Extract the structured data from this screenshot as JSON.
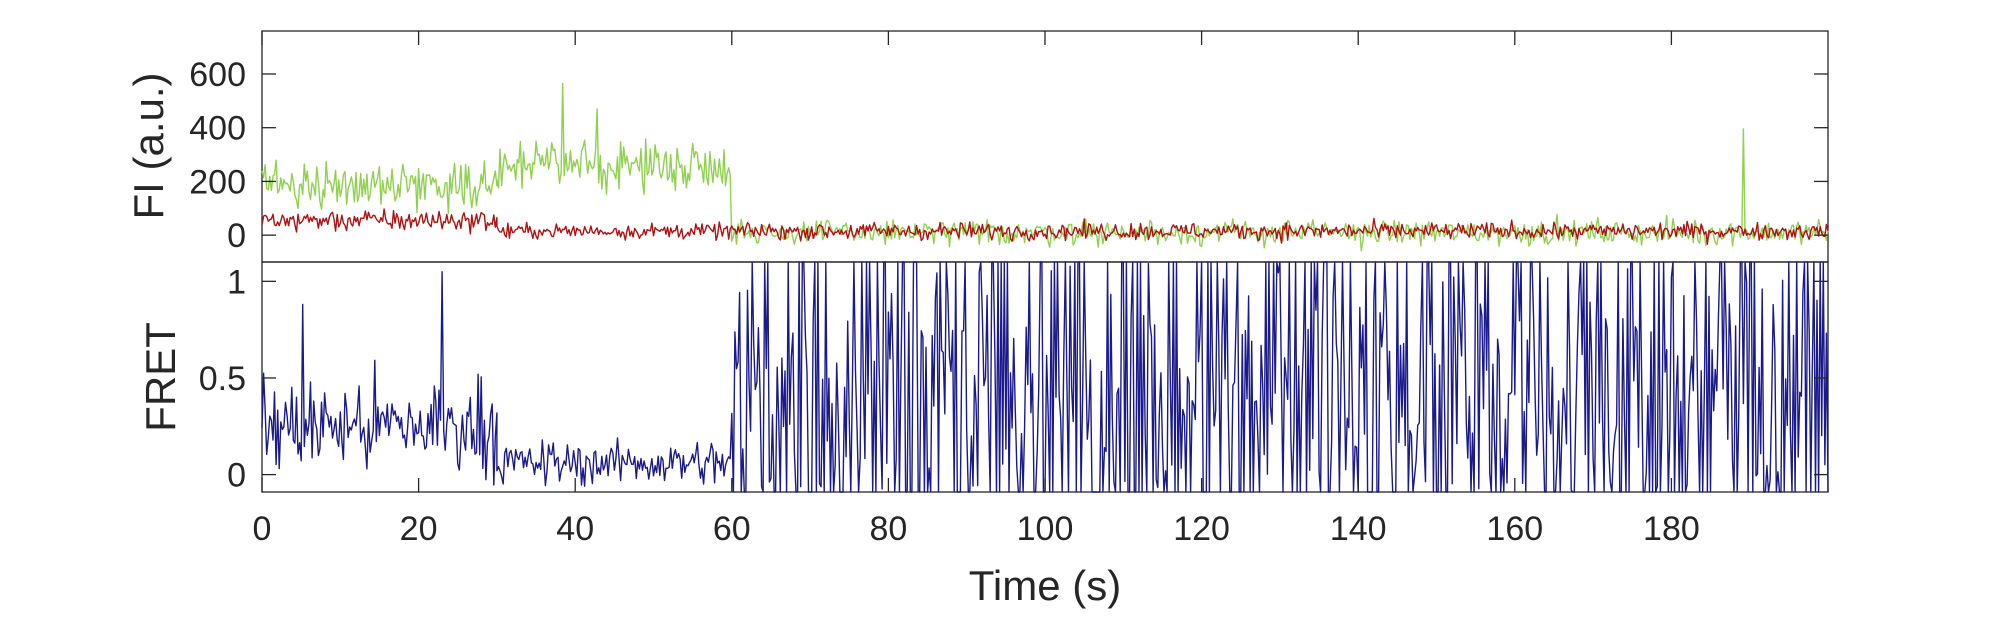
{
  "chart_data": [
    {
      "type": "line",
      "panel": "top",
      "ylabel": "FI (a.u.)",
      "xlim": [
        0,
        200
      ],
      "ylim": [
        -100,
        760
      ],
      "yticks": [
        0,
        200,
        400,
        600
      ],
      "ytick_labels": [
        "0",
        "200",
        "400",
        "600"
      ],
      "grid": false,
      "series": [
        {
          "color": "#8fd14f",
          "segments": [
            {
              "x_start": 0,
              "x_end": 30,
              "mean": 190,
              "noise": 55
            },
            {
              "x_start": 30,
              "x_end": 60,
              "mean": 260,
              "noise": 60
            },
            {
              "x_start": 60,
              "x_end": 200,
              "mean": 10,
              "noise": 32
            }
          ],
          "spikes": [
            {
              "x": 38.5,
              "y": 565
            },
            {
              "x": 189.2,
              "y": 395
            },
            {
              "x": 42.8,
              "y": 470
            }
          ]
        },
        {
          "color": "#b01010",
          "segments": [
            {
              "x_start": 0,
              "x_end": 30,
              "mean": 55,
              "noise": 28
            },
            {
              "x_start": 30,
              "x_end": 60,
              "mean": 15,
              "noise": 20
            },
            {
              "x_start": 60,
              "x_end": 200,
              "mean": 15,
              "noise": 22
            }
          ],
          "spikes": []
        }
      ]
    },
    {
      "type": "line",
      "panel": "bottom",
      "ylabel": "FRET",
      "xlabel": "Time (s)",
      "xlim": [
        0,
        200
      ],
      "ylim": [
        -0.09,
        1.1
      ],
      "yticks": [
        0,
        0.5,
        1
      ],
      "ytick_labels": [
        "0",
        "0.5",
        "1"
      ],
      "xticks": [
        0,
        20,
        40,
        60,
        80,
        100,
        120,
        140,
        160,
        180
      ],
      "xtick_labels": [
        "0",
        "20",
        "40",
        "60",
        "80",
        "100",
        "120",
        "140",
        "160",
        "180"
      ],
      "grid": false,
      "series": [
        {
          "color": "#1a1a8c",
          "segments": [
            {
              "x_start": 0,
              "x_end": 30,
              "mean": 0.25,
              "noise": 0.17,
              "min": -0.09,
              "max": 1.05
            },
            {
              "x_start": 30,
              "x_end": 60,
              "mean": 0.06,
              "noise": 0.08,
              "min": -0.09,
              "max": 0.45
            },
            {
              "x_start": 60,
              "x_end": 200,
              "mean": 0.45,
              "noise": 0.55,
              "min": -0.09,
              "max": 1.1
            }
          ],
          "spikes": [
            {
              "x": 23.0,
              "y": 1.05
            },
            {
              "x": 5.2,
              "y": 0.88
            }
          ]
        }
      ]
    }
  ]
}
